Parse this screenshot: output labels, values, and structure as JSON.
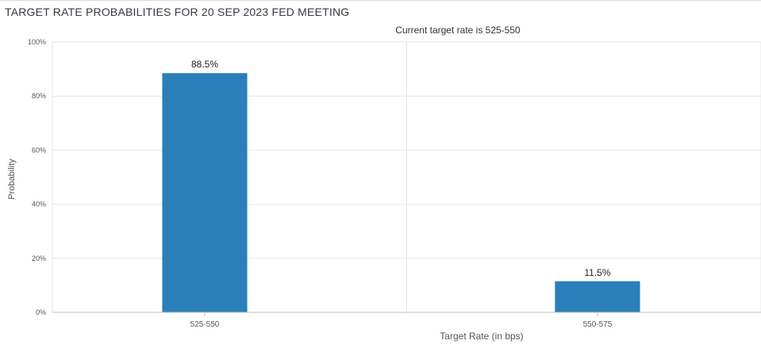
{
  "header": {
    "title": "TARGET RATE PROBABILITIES FOR 20 SEP 2023 FED MEETING"
  },
  "chart_data": {
    "type": "bar",
    "subtitle": "Current target rate is 525-550",
    "categories": [
      "525-550",
      "550-575"
    ],
    "values": [
      88.5,
      11.5
    ],
    "value_labels": [
      "88.5%",
      "11.5%"
    ],
    "xlabel": "Target Rate (in bps)",
    "ylabel": "Probability",
    "ylim": [
      0,
      100
    ],
    "yticks": [
      0,
      20,
      40,
      60,
      80,
      100
    ],
    "ytick_labels": [
      "0%",
      "20%",
      "40%",
      "60%",
      "80%",
      "100%"
    ],
    "grid": true,
    "bar_color": "#2a7fba",
    "grid_color": "#e6e6e6"
  }
}
